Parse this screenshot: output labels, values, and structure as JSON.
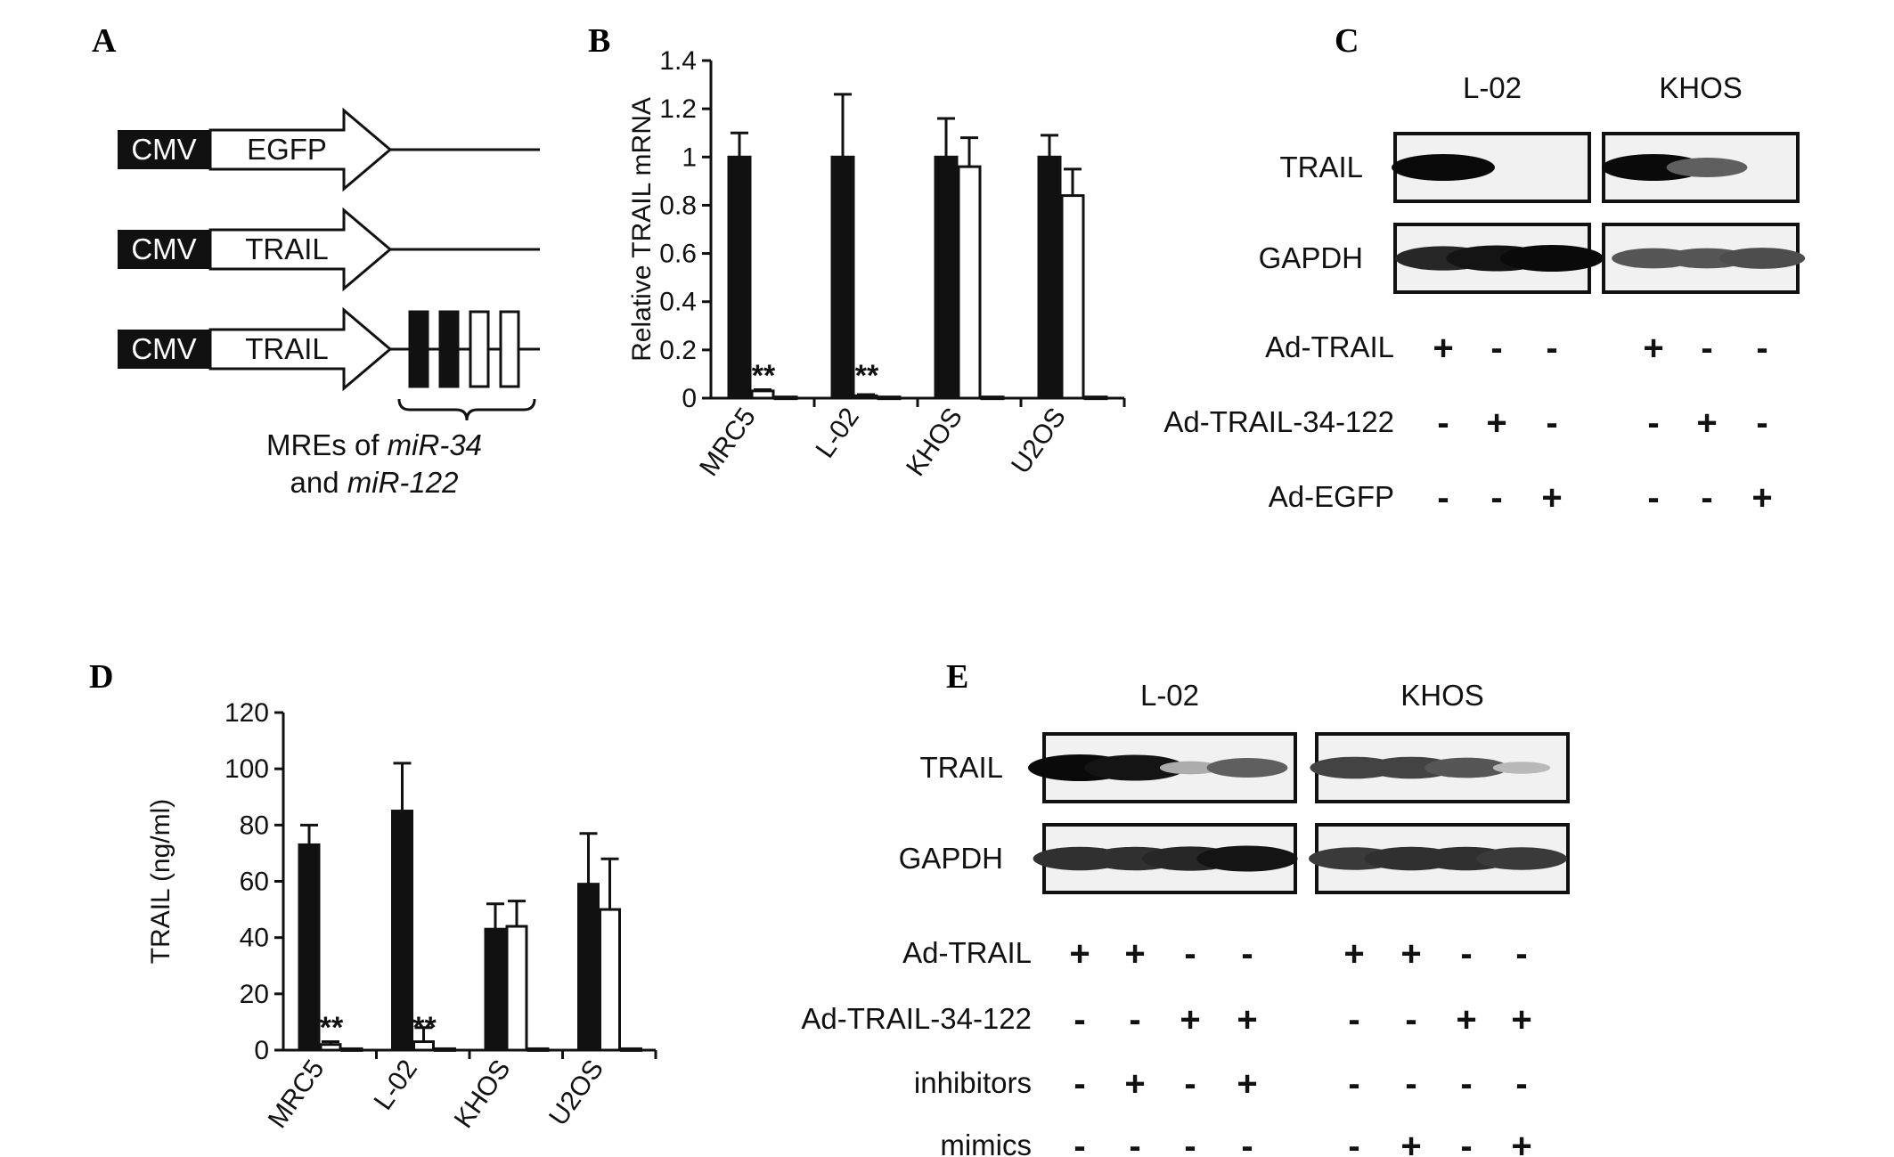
{
  "panels": {
    "a": {
      "letter": "A",
      "constructs": [
        {
          "promoter": "CMV",
          "gene": "EGFP",
          "mres": []
        },
        {
          "promoter": "CMV",
          "gene": "TRAIL",
          "mres": []
        },
        {
          "promoter": "CMV",
          "gene": "TRAIL",
          "mres": [
            "filled",
            "filled",
            "open",
            "open"
          ]
        }
      ],
      "caption_line1_pre": "MREs of ",
      "caption_line1_italic": "miR-34",
      "caption_line2_pre": "and ",
      "caption_line2_italic": "miR-122"
    },
    "b": {
      "letter": "B"
    },
    "c": {
      "letter": "C",
      "groups": [
        "L-02",
        "KHOS"
      ],
      "blot_rows": [
        "TRAIL",
        "GAPDH"
      ],
      "conditions": [
        {
          "label": "Ad-TRAIL",
          "signs": [
            "+",
            "-",
            "-",
            "+",
            "-",
            "-"
          ]
        },
        {
          "label": "Ad-TRAIL-34-122",
          "signs": [
            "-",
            "+",
            "-",
            "-",
            "+",
            "-"
          ]
        },
        {
          "label": "Ad-EGFP",
          "signs": [
            "-",
            "-",
            "+",
            "-",
            "-",
            "+"
          ]
        }
      ],
      "band_intensity": {
        "TRAIL": [
          1.0,
          0.0,
          0.0,
          1.0,
          0.55,
          0.0
        ],
        "GAPDH": [
          0.85,
          0.95,
          1.0,
          0.6,
          0.6,
          0.65
        ]
      }
    },
    "d": {
      "letter": "D"
    },
    "e": {
      "letter": "E",
      "groups": [
        "L-02",
        "KHOS"
      ],
      "blot_rows": [
        "TRAIL",
        "GAPDH"
      ],
      "conditions": [
        {
          "label": "Ad-TRAIL",
          "signs": [
            "+",
            "+",
            "-",
            "-",
            "+",
            "+",
            "-",
            "-"
          ]
        },
        {
          "label": "Ad-TRAIL-34-122",
          "signs": [
            "-",
            "-",
            "+",
            "+",
            "-",
            "-",
            "+",
            "+"
          ]
        },
        {
          "label": "inhibitors",
          "signs": [
            "-",
            "+",
            "-",
            "+",
            "-",
            "-",
            "-",
            "-"
          ]
        },
        {
          "label": "mimics",
          "signs": [
            "-",
            "-",
            "-",
            "-",
            "-",
            "+",
            "-",
            "+"
          ]
        }
      ],
      "band_intensity": {
        "TRAIL": [
          1.0,
          0.95,
          0.15,
          0.55,
          0.7,
          0.7,
          0.6,
          0.08
        ],
        "GAPDH": [
          0.8,
          0.8,
          0.85,
          0.95,
          0.75,
          0.8,
          0.8,
          0.75
        ]
      }
    }
  },
  "chart_data": [
    {
      "type": "bar",
      "panel": "B",
      "ylabel": "Relative TRAIL mRNA",
      "categories": [
        "MRC5",
        "L-02",
        "KHOS",
        "U2OS"
      ],
      "ylim": [
        0,
        1.4
      ],
      "yticks": [
        "0",
        "0.2",
        "0.4",
        "0.6",
        "0.8",
        "1",
        "1.2",
        "1.4"
      ],
      "series": [
        {
          "style": "filled",
          "values": [
            1.0,
            1.0,
            1.0,
            1.0
          ],
          "errors": [
            0.1,
            0.26,
            0.16,
            0.09
          ]
        },
        {
          "style": "open",
          "values": [
            0.03,
            0.01,
            0.96,
            0.84
          ],
          "errors": [
            0.005,
            0.005,
            0.12,
            0.11
          ]
        },
        {
          "style": "open",
          "values": [
            0.005,
            0.005,
            0.005,
            0.005
          ],
          "errors": [
            0,
            0,
            0,
            0
          ]
        }
      ],
      "annotations": [
        "**",
        "**",
        "",
        ""
      ]
    },
    {
      "type": "bar",
      "panel": "D",
      "ylabel": "TRAIL (ng/ml)",
      "categories": [
        "MRC5",
        "L-02",
        "KHOS",
        "U2OS"
      ],
      "ylim": [
        0,
        120
      ],
      "yticks": [
        "0",
        "20",
        "40",
        "60",
        "80",
        "100",
        "120"
      ],
      "series": [
        {
          "style": "filled",
          "values": [
            73,
            85,
            43,
            59
          ],
          "errors": [
            7,
            17,
            9,
            18
          ]
        },
        {
          "style": "open",
          "values": [
            2,
            3,
            44,
            50
          ],
          "errors": [
            1,
            5,
            9,
            18
          ]
        },
        {
          "style": "open",
          "values": [
            0.5,
            0.5,
            0.5,
            0.5
          ],
          "errors": [
            0,
            0,
            0,
            0
          ]
        }
      ],
      "annotations": [
        "**",
        "**",
        "",
        ""
      ]
    }
  ]
}
